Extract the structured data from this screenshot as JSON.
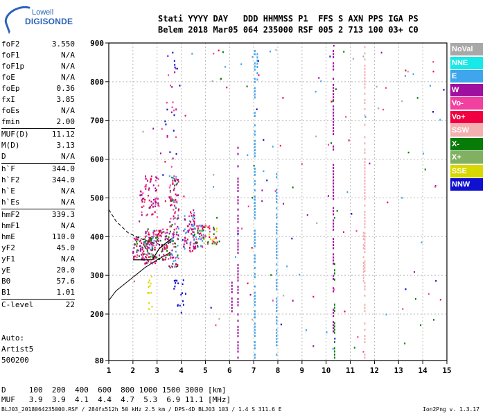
{
  "logo": {
    "line1": "Lowell",
    "line2": "DIGISONDE"
  },
  "header": {
    "labels": "Stati YYYY DAY   DDD HHMMSS P1  FFS S AXN PPS IGA PS",
    "values": "Belem 2018 Mar05 064 235000 RSF 005 2 713 100 03+ C0"
  },
  "params": [
    {
      "label": "foF2",
      "value": "3.550"
    },
    {
      "label": "foF1",
      "value": "N/A"
    },
    {
      "label": "foF1p",
      "value": "N/A"
    },
    {
      "label": "foE",
      "value": "N/A"
    },
    {
      "label": "foEp",
      "value": "0.36"
    },
    {
      "label": "fxI",
      "value": "3.85"
    },
    {
      "label": "foEs",
      "value": "N/A"
    },
    {
      "label": "fmin",
      "value": "2.00"
    },
    {
      "label": "MUF(D)",
      "value": "11.12",
      "sep": true
    },
    {
      "label": "M(D)",
      "value": "3.13"
    },
    {
      "label": "D",
      "value": "N/A"
    },
    {
      "label": "h`F",
      "value": "344.0",
      "sep": true
    },
    {
      "label": "h`F2",
      "value": "344.0"
    },
    {
      "label": "h`E",
      "value": "N/A"
    },
    {
      "label": "h`Es",
      "value": "N/A"
    },
    {
      "label": "hmF2",
      "value": "339.3",
      "sep": true
    },
    {
      "label": "hmF1",
      "value": "N/A"
    },
    {
      "label": "hmE",
      "value": "110.0"
    },
    {
      "label": "yF2",
      "value": "45.0"
    },
    {
      "label": "yF1",
      "value": "N/A"
    },
    {
      "label": "yE",
      "value": "20.0"
    },
    {
      "label": "B0",
      "value": "57.6"
    },
    {
      "label": "B1",
      "value": "1.01"
    },
    {
      "label": "C-level",
      "value": "22",
      "sep": true
    }
  ],
  "auto": {
    "line1": "Auto:",
    "line2": "Artist5",
    "line3": "500200"
  },
  "bottom": {
    "d_line": "D     100  200  400  600  800 1000 1500 3000 [km]",
    "muf_line": "MUF   3.9  3.9  4.1  4.4  4.7  5.3  6.9 11.1 [MHz]"
  },
  "footer": {
    "left": "BLJ03_2018064235000.RSF / 284fx512h 50 kHz 2.5 km / DPS-4D BLJ03 103 / 1.4 S 311.6 E",
    "right": "Ion2Png v. 1.3.17"
  },
  "legend": [
    {
      "label": "NoVal",
      "color": "#a8a8a8"
    },
    {
      "label": "NNE",
      "color": "#17e8e8"
    },
    {
      "label": "E",
      "color": "#3fa5ec"
    },
    {
      "label": "W",
      "color": "#a0109e"
    },
    {
      "label": "Vo-",
      "color": "#f040a0"
    },
    {
      "label": "Vo+",
      "color": "#f00040"
    },
    {
      "label": "SSW",
      "color": "#f4b0b0"
    },
    {
      "label": "X-",
      "color": "#087a08"
    },
    {
      "label": "X+",
      "color": "#80b060"
    },
    {
      "label": "SSE",
      "color": "#d8d800"
    },
    {
      "label": "NNW",
      "color": "#1010d0"
    }
  ],
  "chart_data": {
    "type": "scatter",
    "xlim": [
      1,
      15
    ],
    "ylim": [
      80,
      900
    ],
    "x_ticks": [
      1,
      2,
      3,
      4,
      5,
      6,
      7,
      8,
      9,
      10,
      11,
      12,
      13,
      14,
      15
    ],
    "y_ticks": [
      80,
      200,
      300,
      400,
      500,
      600,
      700,
      800,
      900
    ],
    "grid": true,
    "legend_position": "right",
    "clusters": [
      {
        "f": [
          2.0,
          2.5
        ],
        "h": [
          340,
          400
        ],
        "colors": [
          "#f00040",
          "#a0109e",
          "#f040a0",
          "#087a08"
        ],
        "n": 60
      },
      {
        "f": [
          2.5,
          3.0
        ],
        "h": [
          330,
          420
        ],
        "colors": [
          "#f00040",
          "#a0109e",
          "#f040a0",
          "#087a08",
          "#3fa5ec"
        ],
        "n": 110
      },
      {
        "f": [
          2.3,
          3.1
        ],
        "h": [
          450,
          560
        ],
        "colors": [
          "#a0109e",
          "#f040a0",
          "#f00040"
        ],
        "n": 70
      },
      {
        "f": [
          3.0,
          3.5
        ],
        "h": [
          340,
          420
        ],
        "colors": [
          "#f00040",
          "#f040a0",
          "#a0109e",
          "#087a08"
        ],
        "n": 70
      },
      {
        "f": [
          3.5,
          3.9
        ],
        "h": [
          320,
          560
        ],
        "colors": [
          "#a0109e",
          "#f040a0",
          "#f00040",
          "#3fa5ec",
          "#087a08"
        ],
        "n": 130
      },
      {
        "f": [
          4.1,
          4.6
        ],
        "h": [
          360,
          470
        ],
        "colors": [
          "#f00040",
          "#a0109e",
          "#f040a0",
          "#3fa5ec"
        ],
        "n": 70
      },
      {
        "f": [
          4.5,
          5.0
        ],
        "h": [
          370,
          430
        ],
        "colors": [
          "#f00040",
          "#a0109e",
          "#f040a0",
          "#3fa5ec",
          "#087a08"
        ],
        "n": 55
      },
      {
        "f": [
          4.9,
          5.5
        ],
        "h": [
          380,
          430
        ],
        "colors": [
          "#f00040",
          "#f040a0",
          "#d8d800",
          "#087a08"
        ],
        "n": 35
      },
      {
        "f": [
          3.7,
          4.2
        ],
        "h": [
          200,
          290
        ],
        "colors": [
          "#1010d0"
        ],
        "n": 18
      },
      {
        "f": [
          2.6,
          2.8
        ],
        "h": [
          200,
          300
        ],
        "colors": [
          "#d8d800"
        ],
        "n": 12
      },
      {
        "f": [
          3.3,
          3.8
        ],
        "h": [
          580,
          880
        ],
        "colors": [
          "#a0109e",
          "#1010d0",
          "#f040a0"
        ],
        "n": 25
      },
      {
        "f": [
          2.0,
          15.0
        ],
        "h": [
          100,
          900
        ],
        "colors": [
          "#3fa5ec",
          "#a0109e",
          "#f00040",
          "#087a08",
          "#f040a0",
          "#1010d0",
          "#a8a8a8"
        ],
        "n": 150
      }
    ],
    "columns": [
      {
        "f": 6.35,
        "h": [
          90,
          640
        ],
        "color": "#a0109e"
      },
      {
        "f": 6.1,
        "h": [
          210,
          300
        ],
        "color": "#a0109e"
      },
      {
        "f": 7.05,
        "h": [
          90,
          890
        ],
        "color": "#3fa5ec"
      },
      {
        "f": 7.15,
        "h": [
          800,
          890
        ],
        "color": "#3fa5ec"
      },
      {
        "f": 7.95,
        "h": [
          90,
          580
        ],
        "color": "#3fa5ec"
      },
      {
        "f": 10.3,
        "h": [
          150,
          890
        ],
        "color": "#a0109e"
      },
      {
        "f": 10.35,
        "h": [
          90,
          340
        ],
        "color": "#087a08"
      },
      {
        "f": 11.6,
        "h": [
          90,
          900
        ],
        "color": "#f4b0b0"
      },
      {
        "f": 11.55,
        "h": [
          280,
          420
        ],
        "color": "#f4b0b0"
      }
    ],
    "trace": {
      "f": [
        2.0,
        2.2,
        2.8,
        3.1,
        3.6
      ],
      "h": [
        340,
        340,
        340,
        370,
        395
      ]
    },
    "profile_curve": {
      "f": [
        1.0,
        1.3,
        1.8,
        2.5,
        3.0,
        3.3,
        3.55
      ],
      "h": [
        235,
        260,
        285,
        320,
        340,
        350,
        360
      ]
    },
    "dashed_curve": {
      "f": [
        1.0,
        1.3,
        1.8,
        2.3,
        2.8,
        3.1,
        3.45
      ],
      "h": [
        470,
        440,
        410,
        395,
        385,
        380,
        377
      ]
    }
  }
}
